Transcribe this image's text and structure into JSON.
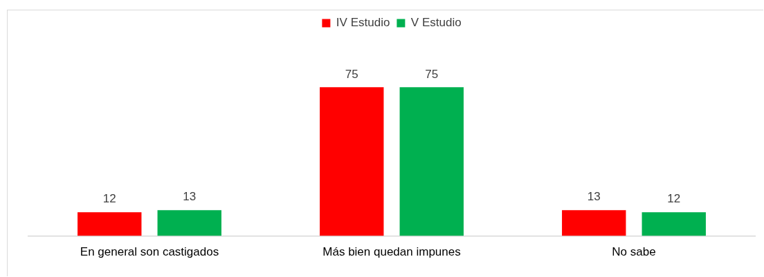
{
  "chart_data": {
    "type": "bar",
    "categories": [
      "En general son castigados",
      "Más bien quedan impunes",
      "No sabe"
    ],
    "series": [
      {
        "name": "IV Estudio",
        "color": "#ff0000",
        "values": [
          12,
          75,
          13
        ]
      },
      {
        "name": "V Estudio",
        "color": "#00b050",
        "values": [
          13,
          75,
          12
        ]
      }
    ],
    "data_labels": true,
    "legend": "top",
    "grid": false,
    "tick_labels": "x"
  }
}
